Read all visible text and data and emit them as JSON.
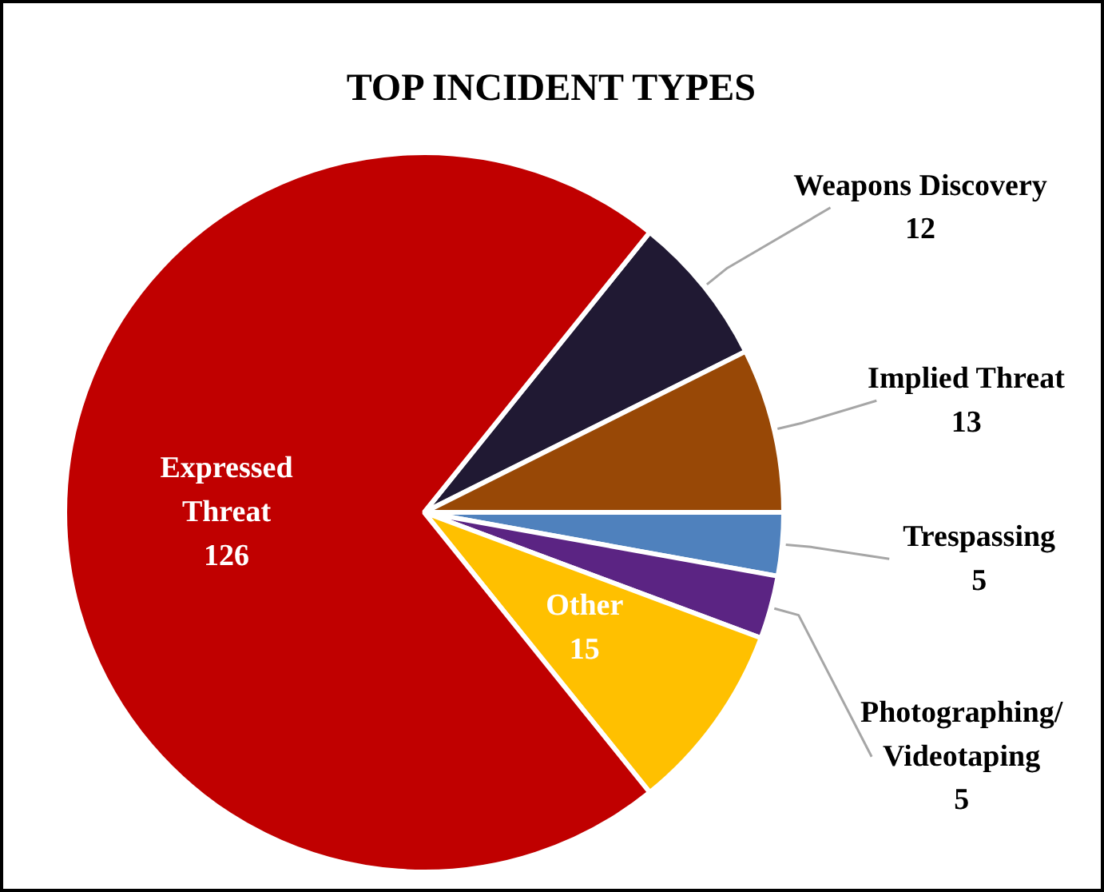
{
  "chart_data": {
    "type": "pie",
    "title": "TOP INCIDENT TYPES",
    "categories": [
      "Weapons Discovery",
      "Implied Threat",
      "Trespassing",
      "Photographing/\nVideotaping",
      "Other",
      "Expressed\nThreat"
    ],
    "values": [
      12,
      13,
      5,
      5,
      15,
      126
    ],
    "colors": [
      "#201933",
      "#984806",
      "#4f81bd",
      "#5b2483",
      "#ffc000",
      "#c00000"
    ],
    "data_labels": true
  }
}
